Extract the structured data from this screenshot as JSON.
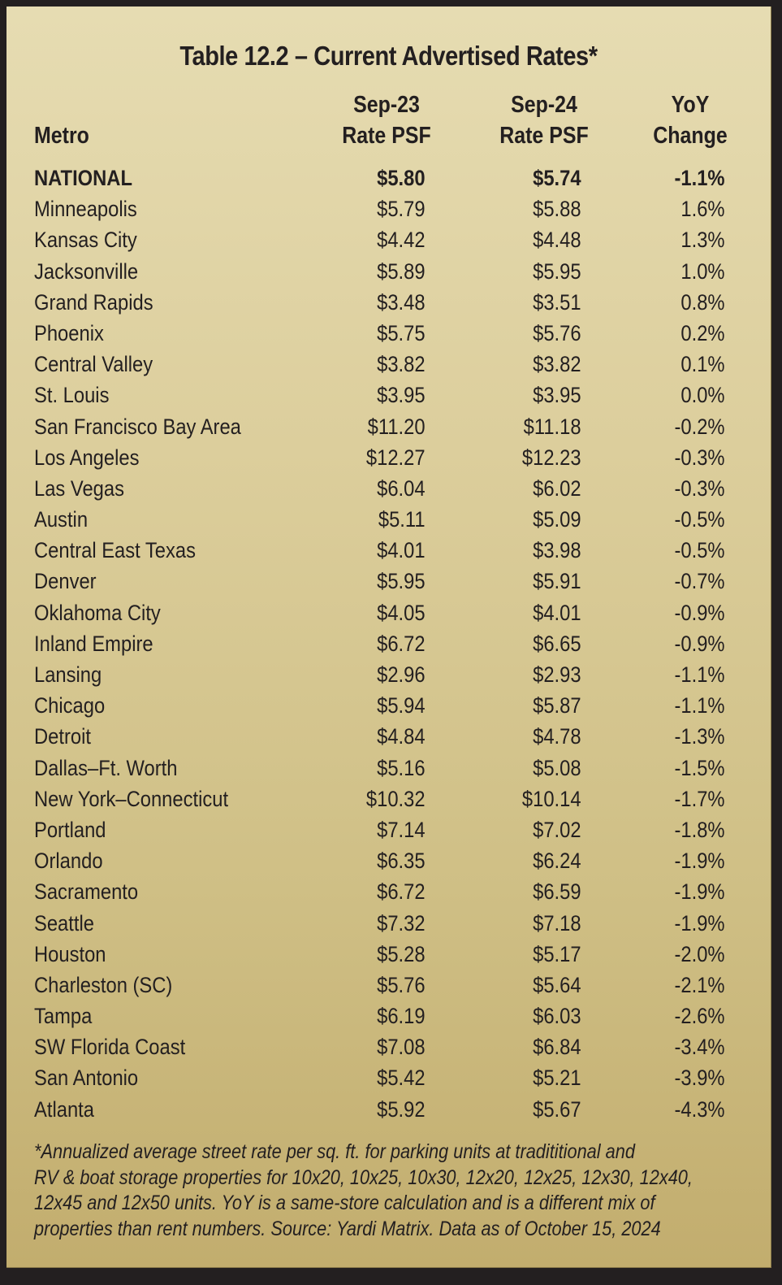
{
  "title": "Table 12.2 – Current Advertised Rates*",
  "colors": {
    "background_top": "#e6dcb2",
    "background_bottom": "#c2ad6e",
    "border": "#231f20",
    "text": "#231f20"
  },
  "columns": {
    "metro": "Metro",
    "sep23_line1": "Sep-23",
    "sep23_line2": "Rate PSF",
    "sep24_line1": "Sep-24",
    "sep24_line2": "Rate PSF",
    "yoy_line1": "YoY",
    "yoy_line2": "Change"
  },
  "rows": [
    {
      "metro": "NATIONAL",
      "sep23": "$5.80",
      "sep24": "$5.74",
      "yoy": "-1.1%"
    },
    {
      "metro": "Minneapolis",
      "sep23": "$5.79",
      "sep24": "$5.88",
      "yoy": "1.6%"
    },
    {
      "metro": "Kansas City",
      "sep23": "$4.42",
      "sep24": "$4.48",
      "yoy": "1.3%"
    },
    {
      "metro": "Jacksonville",
      "sep23": "$5.89",
      "sep24": "$5.95",
      "yoy": "1.0%"
    },
    {
      "metro": "Grand Rapids",
      "sep23": "$3.48",
      "sep24": "$3.51",
      "yoy": "0.8%"
    },
    {
      "metro": "Phoenix",
      "sep23": "$5.75",
      "sep24": "$5.76",
      "yoy": "0.2%"
    },
    {
      "metro": "Central Valley",
      "sep23": "$3.82",
      "sep24": "$3.82",
      "yoy": "0.1%"
    },
    {
      "metro": "St. Louis",
      "sep23": "$3.95",
      "sep24": "$3.95",
      "yoy": "0.0%"
    },
    {
      "metro": "San Francisco Bay Area",
      "sep23": "$11.20",
      "sep24": "$11.18",
      "yoy": "-0.2%"
    },
    {
      "metro": "Los Angeles",
      "sep23": "$12.27",
      "sep24": "$12.23",
      "yoy": "-0.3%"
    },
    {
      "metro": "Las Vegas",
      "sep23": "$6.04",
      "sep24": "$6.02",
      "yoy": "-0.3%"
    },
    {
      "metro": "Austin",
      "sep23": "$5.11",
      "sep24": "$5.09",
      "yoy": "-0.5%"
    },
    {
      "metro": "Central East Texas",
      "sep23": "$4.01",
      "sep24": "$3.98",
      "yoy": "-0.5%"
    },
    {
      "metro": "Denver",
      "sep23": "$5.95",
      "sep24": "$5.91",
      "yoy": "-0.7%"
    },
    {
      "metro": "Oklahoma City",
      "sep23": "$4.05",
      "sep24": "$4.01",
      "yoy": "-0.9%"
    },
    {
      "metro": "Inland Empire",
      "sep23": "$6.72",
      "sep24": "$6.65",
      "yoy": "-0.9%"
    },
    {
      "metro": "Lansing",
      "sep23": "$2.96",
      "sep24": "$2.93",
      "yoy": "-1.1%"
    },
    {
      "metro": "Chicago",
      "sep23": "$5.94",
      "sep24": "$5.87",
      "yoy": "-1.1%"
    },
    {
      "metro": "Detroit",
      "sep23": "$4.84",
      "sep24": "$4.78",
      "yoy": "-1.3%"
    },
    {
      "metro": "Dallas–Ft. Worth",
      "sep23": "$5.16",
      "sep24": "$5.08",
      "yoy": "-1.5%"
    },
    {
      "metro": "New York–Connecticut",
      "sep23": "$10.32",
      "sep24": "$10.14",
      "yoy": "-1.7%"
    },
    {
      "metro": "Portland",
      "sep23": "$7.14",
      "sep24": "$7.02",
      "yoy": "-1.8%"
    },
    {
      "metro": "Orlando",
      "sep23": "$6.35",
      "sep24": "$6.24",
      "yoy": "-1.9%"
    },
    {
      "metro": "Sacramento",
      "sep23": "$6.72",
      "sep24": "$6.59",
      "yoy": "-1.9%"
    },
    {
      "metro": "Seattle",
      "sep23": "$7.32",
      "sep24": "$7.18",
      "yoy": "-1.9%"
    },
    {
      "metro": "Houston",
      "sep23": "$5.28",
      "sep24": "$5.17",
      "yoy": "-2.0%"
    },
    {
      "metro": "Charleston (SC)",
      "sep23": "$5.76",
      "sep24": "$5.64",
      "yoy": "-2.1%"
    },
    {
      "metro": "Tampa",
      "sep23": "$6.19",
      "sep24": "$6.03",
      "yoy": "-2.6%"
    },
    {
      "metro": "SW Florida Coast",
      "sep23": "$7.08",
      "sep24": "$6.84",
      "yoy": "-3.4%"
    },
    {
      "metro": "San Antonio",
      "sep23": "$5.42",
      "sep24": "$5.21",
      "yoy": "-3.9%"
    },
    {
      "metro": "Atlanta",
      "sep23": "$5.92",
      "sep24": "$5.67",
      "yoy": "-4.3%"
    }
  ],
  "footnote": {
    "lines": [
      "*Annualized average street rate per sq. ft. for parking units at tradititional and",
      "RV & boat storage properties for 10x20, 10x25, 10x30, 12x20, 12x25, 12x30, 12x40,",
      "12x45 and 12x50 units. YoY is a same-store calculation and is a different mix of",
      "properties than rent numbers. Source: Yardi Matrix. Data as of October 15, 2024"
    ]
  }
}
